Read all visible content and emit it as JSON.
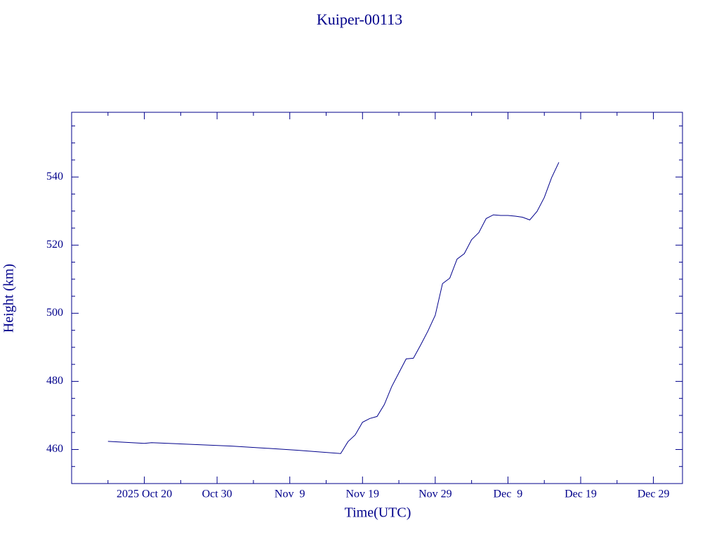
{
  "chart_data": {
    "type": "line",
    "title": "Kuiper-00113",
    "x_label": "Time(UTC)",
    "y_label": "Height (km)",
    "color": "#00008b",
    "x": [
      "2025-10-15",
      "2025-10-20",
      "2025-10-21",
      "2025-11-01",
      "2025-11-10",
      "2025-11-16",
      "2025-11-17",
      "2025-11-18",
      "2025-11-19",
      "2025-11-20",
      "2025-11-21",
      "2025-11-22",
      "2025-11-23",
      "2025-11-24",
      "2025-11-25",
      "2025-11-26",
      "2025-11-27",
      "2025-11-28",
      "2025-11-29",
      "2025-11-30",
      "2025-12-01",
      "2025-12-02",
      "2025-12-03",
      "2025-12-04",
      "2025-12-05",
      "2025-12-06",
      "2025-12-07",
      "2025-12-08",
      "2025-12-09",
      "2025-12-10",
      "2025-12-11",
      "2025-12-12",
      "2025-12-13",
      "2025-12-14",
      "2025-12-15",
      "2025-12-16"
    ],
    "values": [
      462.4,
      461.8,
      462.0,
      461.0,
      459.8,
      458.8,
      462.3,
      464.3,
      468.0,
      469.1,
      469.7,
      473.2,
      478.4,
      482.5,
      486.6,
      486.8,
      490.7,
      494.8,
      499.4,
      508.7,
      510.3,
      515.9,
      517.5,
      521.6,
      523.7,
      527.8,
      528.9,
      528.7,
      528.7,
      528.5,
      528.2,
      527.4,
      529.9,
      534.0,
      539.8,
      544.3
    ],
    "xlim": [
      "2025-10-10",
      "2026-01-02"
    ],
    "xticks": [
      {
        "value": "2025-10-20",
        "label": "2025 Oct 20"
      },
      {
        "value": "2025-10-30",
        "label": "Oct 30"
      },
      {
        "value": "2025-11-09",
        "label": "Nov  9"
      },
      {
        "value": "2025-11-19",
        "label": "Nov 19"
      },
      {
        "value": "2025-11-29",
        "label": "Nov 29"
      },
      {
        "value": "2025-12-09",
        "label": "Dec  9"
      },
      {
        "value": "2025-12-19",
        "label": "Dec 19"
      },
      {
        "value": "2025-12-29",
        "label": "Dec 29"
      }
    ],
    "ylim": [
      450,
      559
    ],
    "yticks": [
      460,
      480,
      500,
      520,
      540
    ]
  }
}
